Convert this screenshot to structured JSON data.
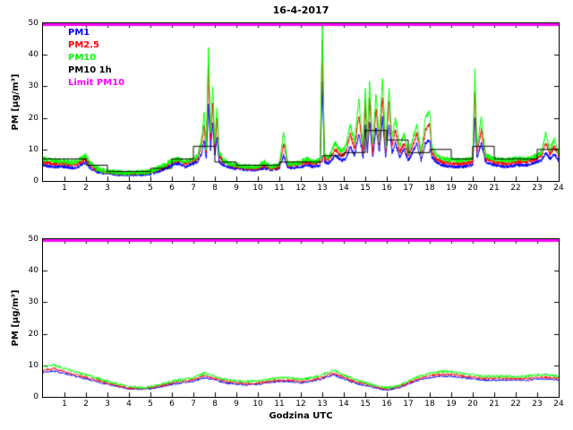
{
  "title": "16-4-2017",
  "xlabel": "Godzina UTC",
  "ylabel": "PM [µg/m³]",
  "colors": {
    "pm1": "#0000ff",
    "pm25": "#ff0000",
    "pm10": "#00ff00",
    "pm10_1h": "#000000",
    "limit": "#ff00ff",
    "axis": "#000000",
    "background": "#ffffff"
  },
  "legend": [
    {
      "label": "PM1",
      "color": "#0000ff"
    },
    {
      "label": "PM2.5",
      "color": "#ff0000"
    },
    {
      "label": "PM10",
      "color": "#00ff00"
    },
    {
      "label": "PM10 1h",
      "color": "#000000"
    },
    {
      "label": "Limit PM10",
      "color": "#ff00ff"
    }
  ],
  "chart_data": [
    {
      "type": "line",
      "title": "16-4-2017",
      "xlabel": "",
      "ylabel": "PM [µg/m³]",
      "xlim": [
        0,
        24
      ],
      "ylim": [
        0,
        50
      ],
      "xticks": [
        1,
        2,
        3,
        4,
        5,
        6,
        7,
        8,
        9,
        10,
        11,
        12,
        13,
        14,
        15,
        16,
        17,
        18,
        19,
        20,
        21,
        22,
        23,
        24
      ],
      "yticks": [
        0,
        10,
        20,
        30,
        40,
        50
      ],
      "grid": false,
      "legend_position": "top-left-inside",
      "sample_step": 0.01,
      "x": [
        0,
        0.5,
        1,
        1.5,
        2,
        2.2,
        2.5,
        3,
        3.5,
        4,
        4.5,
        5,
        5.5,
        6,
        6.3,
        6.6,
        7,
        7.2,
        7.4,
        7.5,
        7.6,
        7.7,
        7.8,
        7.9,
        8,
        8.1,
        8.2,
        8.4,
        8.7,
        9,
        9.5,
        10,
        10.3,
        10.6,
        11,
        11.2,
        11.4,
        11.7,
        12,
        12.3,
        12.6,
        12.9,
        13,
        13.1,
        13.3,
        13.6,
        13.9,
        14.1,
        14.3,
        14.5,
        14.7,
        14.9,
        15,
        15.1,
        15.2,
        15.35,
        15.5,
        15.65,
        15.8,
        15.95,
        16.1,
        16.25,
        16.4,
        16.6,
        16.8,
        17,
        17.2,
        17.4,
        17.6,
        17.8,
        18,
        18.1,
        18.3,
        18.6,
        19,
        19.5,
        20,
        20.1,
        20.2,
        20.4,
        20.6,
        21,
        21.5,
        22,
        22.5,
        23,
        23.2,
        23.4,
        23.6,
        23.8,
        24
      ],
      "series": [
        {
          "name": "PM1",
          "color": "#0000ff",
          "noise": 0.55,
          "values": [
            5,
            4.5,
            4.5,
            4,
            6,
            4,
            3,
            2.3,
            2,
            2,
            2,
            2.3,
            3.2,
            5,
            5.5,
            4.5,
            5.5,
            6,
            9,
            13,
            7,
            25,
            10,
            18,
            8,
            14,
            6,
            5,
            4.2,
            4,
            3.5,
            3.5,
            4.2,
            3.5,
            4,
            8,
            4.2,
            4.2,
            4.5,
            5,
            4.5,
            5,
            32,
            6,
            5.5,
            8,
            6.5,
            7,
            11,
            8,
            15,
            7.5,
            18,
            9,
            19,
            7.5,
            17,
            9,
            20,
            7.5,
            18,
            9,
            12,
            7.5,
            10,
            6.5,
            9,
            12,
            6.5,
            12,
            13,
            7.5,
            6,
            5,
            4.5,
            4.5,
            5,
            20,
            7.5,
            12,
            6,
            5,
            4.5,
            5,
            5,
            6,
            6.5,
            9,
            7,
            8.5,
            6.5
          ]
        },
        {
          "name": "PM2.5",
          "color": "#ff0000",
          "noise": 0.65,
          "values": [
            6,
            5.5,
            5.5,
            5,
            7,
            5,
            3.5,
            2.8,
            2.5,
            2.3,
            2.5,
            2.8,
            4,
            6,
            6.5,
            5.5,
            6.5,
            7,
            12,
            18,
            9,
            36,
            13,
            25,
            10,
            20,
            8,
            6,
            5,
            4.5,
            4,
            4,
            5,
            4,
            4.5,
            12,
            5,
            5,
            5.5,
            6,
            5.5,
            6,
            45,
            7,
            7,
            10,
            8,
            9,
            15,
            10,
            21,
            9,
            25,
            11,
            26,
            9,
            23,
            11,
            27,
            9,
            25,
            11,
            16,
            9,
            12,
            8,
            11,
            15,
            8,
            16,
            18,
            9,
            7,
            6,
            5.5,
            5.5,
            6,
            28,
            9,
            16,
            7,
            6,
            5.5,
            6,
            6,
            7,
            8,
            12,
            8.5,
            11,
            8
          ]
        },
        {
          "name": "PM10",
          "color": "#00ff00",
          "noise": 0.85,
          "values": [
            7,
            6.5,
            6,
            6,
            8,
            5.5,
            4,
            3,
            2.8,
            2.5,
            2.8,
            3,
            4.5,
            6.5,
            7,
            6,
            7,
            8,
            14,
            22,
            10,
            43,
            16,
            30,
            12,
            24,
            9,
            6.5,
            5.5,
            5,
            4.5,
            4.5,
            6,
            4.5,
            5,
            15,
            5.5,
            5.5,
            6,
            7,
            6,
            7,
            50,
            8,
            7.5,
            12,
            9,
            11,
            18,
            12,
            26,
            11,
            30,
            13,
            31,
            11,
            28,
            13,
            33,
            11,
            30,
            13,
            20,
            11,
            15,
            9,
            13,
            18,
            9,
            20,
            22,
            11,
            8,
            7,
            6.5,
            6.5,
            7,
            35,
            11,
            20,
            8,
            7,
            6.5,
            7,
            7,
            8,
            9,
            15,
            10,
            13,
            9
          ]
        }
      ],
      "step_series": {
        "name": "PM10 1h",
        "color": "#000000",
        "hourly": [
          7,
          7,
          5,
          3,
          3,
          4,
          7,
          11,
          6,
          5,
          5,
          6,
          6,
          8,
          9,
          16,
          13,
          9,
          10,
          7,
          11,
          7,
          7,
          10
        ]
      },
      "limit_series": {
        "name": "Limit PM10",
        "color": "#ff00ff",
        "value": 50
      }
    },
    {
      "type": "line",
      "title": "",
      "xlabel": "Godzina UTC",
      "ylabel": "PM [µg/m³]",
      "xlim": [
        0,
        24
      ],
      "ylim": [
        0,
        50
      ],
      "xticks": [
        1,
        2,
        3,
        4,
        5,
        6,
        7,
        8,
        9,
        10,
        11,
        12,
        13,
        14,
        15,
        16,
        17,
        18,
        19,
        20,
        21,
        22,
        23,
        24
      ],
      "yticks": [
        0,
        10,
        20,
        30,
        40,
        50
      ],
      "grid": false,
      "sample_step": 0.02,
      "x": [
        0,
        0.5,
        1,
        1.5,
        2,
        2.5,
        3,
        3.5,
        4,
        4.5,
        5,
        5.5,
        6,
        6.5,
        7,
        7.5,
        8,
        8.5,
        9,
        9.5,
        10,
        10.5,
        11,
        11.5,
        12,
        12.5,
        13,
        13.5,
        14,
        14.5,
        15,
        15.5,
        16,
        16.5,
        17,
        17.5,
        18,
        18.5,
        19,
        19.5,
        20,
        20.5,
        21,
        21.5,
        22,
        22.5,
        23,
        23.5,
        24
      ],
      "series": [
        {
          "name": "PM1",
          "color": "#0000ff",
          "noise": 0.3,
          "values": [
            7.8,
            8.2,
            7.4,
            6.5,
            5.7,
            4.8,
            4,
            3.2,
            2.5,
            2.4,
            2.6,
            3.2,
            4,
            4.4,
            4.9,
            6.1,
            5.3,
            4.4,
            4,
            3.8,
            4,
            4.4,
            4.9,
            4.9,
            4.4,
            4.9,
            5.7,
            7,
            5.7,
            4.4,
            3.6,
            2.8,
            2.1,
            2.8,
            4,
            5.3,
            6.1,
            6.5,
            6.5,
            6.1,
            5.7,
            5.3,
            5.3,
            5.3,
            5.3,
            5.3,
            5.7,
            5.7,
            5.3
          ]
        },
        {
          "name": "PM2.5",
          "color": "#ff0000",
          "noise": 0.35,
          "values": [
            8.5,
            9,
            8,
            7,
            6.2,
            5.3,
            4.4,
            3.5,
            2.8,
            2.7,
            2.9,
            3.5,
            4.4,
            4.9,
            5.4,
            6.7,
            5.8,
            4.9,
            4.4,
            4.2,
            4.4,
            4.9,
            5.3,
            5.3,
            4.9,
            5.3,
            6.2,
            7.6,
            6.2,
            4.9,
            4,
            3.1,
            2.4,
            3.1,
            4.4,
            5.8,
            6.7,
            7.1,
            7.1,
            6.7,
            6.2,
            5.8,
            5.8,
            5.8,
            5.8,
            5.8,
            6.2,
            6.2,
            5.8
          ]
        },
        {
          "name": "PM10",
          "color": "#00ff00",
          "noise": 0.45,
          "values": [
            9.5,
            10,
            9,
            8,
            7,
            6,
            5,
            4,
            3.2,
            3,
            3.2,
            4,
            5,
            5.5,
            6,
            7.5,
            6.5,
            5.5,
            5,
            4.8,
            5,
            5.5,
            6,
            6,
            5.5,
            6,
            7,
            8.5,
            7,
            5.5,
            4.5,
            3.5,
            2.8,
            3.5,
            5,
            6.5,
            7.5,
            8,
            8,
            7.5,
            7,
            6.5,
            6.5,
            6.5,
            6.5,
            6.5,
            7,
            7,
            6.5
          ]
        }
      ],
      "limit_series": {
        "name": "Limit PM10",
        "color": "#ff00ff",
        "value": 50
      }
    }
  ]
}
